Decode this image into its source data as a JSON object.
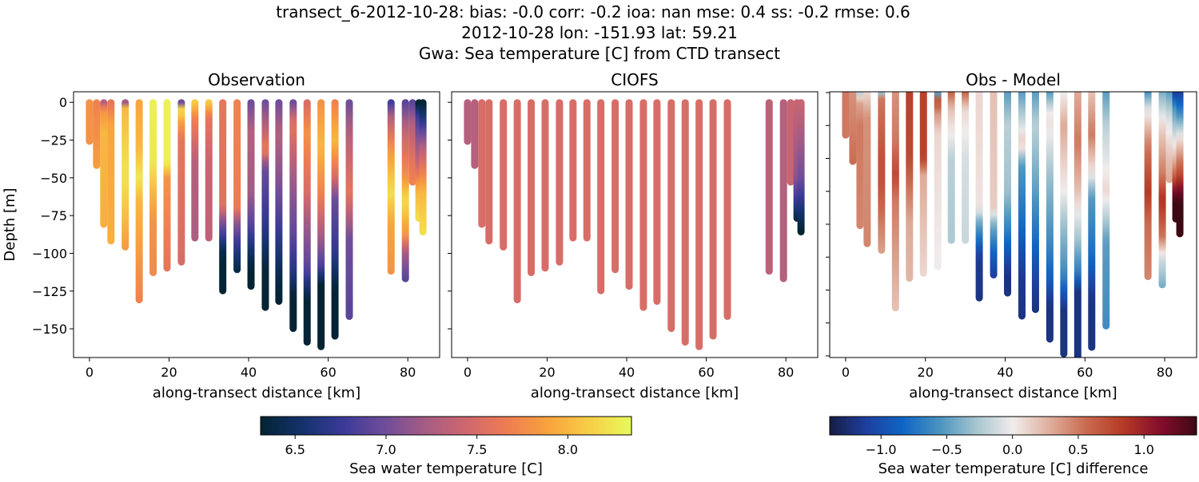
{
  "title_lines": [
    "transect_6-2012-10-28: bias: -0.0  corr: -0.2  ioa: nan  mse: 0.4  ss: -0.2  rmse: 0.6",
    "2012-10-28 lon: -151.93 lat: 59.21",
    "Gwa: Sea temperature [C] from CTD transect"
  ],
  "chart_data": [
    {
      "type": "scatter",
      "title": "Observation",
      "xlabel": "along-transect distance [km]",
      "ylabel": "Depth [m]",
      "xlim": [
        -4,
        88
      ],
      "ylim": [
        -169,
        7
      ],
      "xticks": [
        "0",
        "20",
        "40",
        "60",
        "80"
      ],
      "yticks": [
        "0",
        "−25",
        "−50",
        "−75",
        "−100",
        "−125",
        "−150"
      ],
      "variable": "obs",
      "colormap": "thermal",
      "clim": [
        6.31,
        8.35
      ]
    },
    {
      "type": "scatter",
      "title": "CIOFS",
      "xlabel": "along-transect distance [km]",
      "xlim": [
        -4,
        88
      ],
      "ylim": [
        -169,
        7
      ],
      "xticks": [
        "0",
        "20",
        "40",
        "60",
        "80"
      ],
      "variable": "model",
      "colormap": "thermal",
      "clim": [
        6.31,
        8.35
      ]
    },
    {
      "type": "scatter",
      "title": "Obs - Model",
      "xlabel": "along-transect distance [km]",
      "xlim": [
        -4,
        88
      ],
      "ylim": [
        -161,
        0.5
      ],
      "xticks": [
        "0",
        "20",
        "40",
        "60",
        "80"
      ],
      "variable": "difference",
      "colormap": "balance",
      "clim": [
        -1.39,
        1.4
      ]
    }
  ],
  "casts": [
    {
      "km": 0,
      "bottom": -26,
      "obs": [
        [
          0,
          7.8
        ],
        [
          -26,
          7.8
        ]
      ],
      "model": [
        [
          0,
          7.3
        ],
        [
          -26,
          7.3
        ]
      ]
    },
    {
      "km": 1.8,
      "bottom": -42,
      "obs": [
        [
          0,
          7.7
        ],
        [
          -42,
          7.85
        ]
      ],
      "model": [
        [
          0,
          7.3
        ],
        [
          -42,
          7.3
        ]
      ]
    },
    {
      "km": 3.6,
      "bottom": -81,
      "obs": [
        [
          0,
          7.3
        ],
        [
          -5,
          7.8
        ],
        [
          -20,
          8.0
        ],
        [
          -81,
          7.95
        ]
      ],
      "model": [
        [
          0,
          7.5
        ],
        [
          -81,
          7.5
        ]
      ]
    },
    {
      "km": 5.4,
      "bottom": -92,
      "obs": [
        [
          0,
          7.6
        ],
        [
          -15,
          7.9
        ],
        [
          -92,
          7.95
        ]
      ],
      "model": [
        [
          0,
          7.5
        ],
        [
          -92,
          7.5
        ]
      ]
    },
    {
      "km": 9,
      "bottom": -96,
      "obs": [
        [
          0,
          7.2
        ],
        [
          -3,
          8.0
        ],
        [
          -40,
          8.2
        ],
        [
          -55,
          8.2
        ],
        [
          -96,
          7.85
        ]
      ],
      "model": [
        [
          0,
          7.5
        ],
        [
          -96,
          7.5
        ]
      ]
    },
    {
      "km": 12.5,
      "bottom": -131,
      "obs": [
        [
          0,
          7.9
        ],
        [
          -30,
          8.0
        ],
        [
          -50,
          8.25
        ],
        [
          -65,
          8.0
        ],
        [
          -131,
          7.7
        ]
      ],
      "model": [
        [
          0,
          7.5
        ],
        [
          -131,
          7.5
        ]
      ]
    },
    {
      "km": 16,
      "bottom": -113,
      "obs": [
        [
          0,
          8.3
        ],
        [
          -40,
          8.25
        ],
        [
          -60,
          8.0
        ],
        [
          -80,
          7.8
        ],
        [
          -113,
          7.75
        ]
      ],
      "model": [
        [
          0,
          7.5
        ],
        [
          -113,
          7.5
        ]
      ]
    },
    {
      "km": 19.5,
      "bottom": -110,
      "obs": [
        [
          0,
          8.3
        ],
        [
          -40,
          8.3
        ],
        [
          -50,
          7.8
        ],
        [
          -110,
          7.6
        ]
      ],
      "model": [
        [
          0,
          7.5
        ],
        [
          -110,
          7.5
        ]
      ]
    },
    {
      "km": 23.1,
      "bottom": -106,
      "obs": [
        [
          0,
          7.0
        ],
        [
          -5,
          8.3
        ],
        [
          -12,
          7.9
        ],
        [
          -25,
          7.6
        ],
        [
          -106,
          7.5
        ]
      ],
      "model": [
        [
          0,
          7.5
        ],
        [
          -106,
          7.5
        ]
      ]
    },
    {
      "km": 26.5,
      "bottom": -90,
      "obs": [
        [
          0,
          8.1
        ],
        [
          -10,
          7.7
        ],
        [
          -40,
          7.3
        ],
        [
          -90,
          7.25
        ]
      ],
      "model": [
        [
          0,
          7.5
        ],
        [
          -90,
          7.5
        ]
      ]
    },
    {
      "km": 30,
      "bottom": -90,
      "obs": [
        [
          0,
          8.1
        ],
        [
          -10,
          7.6
        ],
        [
          -40,
          7.4
        ],
        [
          -90,
          7.35
        ]
      ],
      "model": [
        [
          0,
          7.5
        ],
        [
          -90,
          7.5
        ]
      ]
    },
    {
      "km": 33.5,
      "bottom": -125,
      "obs": [
        [
          0,
          7.6
        ],
        [
          -70,
          7.55
        ],
        [
          -78,
          7.1
        ],
        [
          -90,
          6.7
        ],
        [
          -100,
          6.35
        ],
        [
          -125,
          6.3
        ]
      ],
      "model": [
        [
          0,
          7.5
        ],
        [
          -125,
          7.5
        ]
      ]
    },
    {
      "km": 37.1,
      "bottom": -111,
      "obs": [
        [
          0,
          7.7
        ],
        [
          -70,
          7.65
        ],
        [
          -80,
          7.1
        ],
        [
          -95,
          6.7
        ],
        [
          -111,
          6.4
        ]
      ],
      "model": [
        [
          0,
          7.5
        ],
        [
          -111,
          7.5
        ]
      ]
    },
    {
      "km": 40.6,
      "bottom": -122,
      "obs": [
        [
          0,
          7.0
        ],
        [
          -20,
          7.3
        ],
        [
          -60,
          7.2
        ],
        [
          -80,
          6.9
        ],
        [
          -100,
          6.5
        ],
        [
          -110,
          6.3
        ],
        [
          -122,
          6.3
        ]
      ],
      "model": [
        [
          0,
          7.5
        ],
        [
          -122,
          7.5
        ]
      ]
    },
    {
      "km": 44.2,
      "bottom": -136,
      "obs": [
        [
          0,
          7.0
        ],
        [
          -20,
          7.4
        ],
        [
          -32,
          7.7
        ],
        [
          -42,
          7.0
        ],
        [
          -80,
          6.7
        ],
        [
          -110,
          6.35
        ],
        [
          -136,
          6.3
        ]
      ],
      "model": [
        [
          0,
          7.5
        ],
        [
          -136,
          7.5
        ]
      ]
    },
    {
      "km": 47.6,
      "bottom": -132,
      "obs": [
        [
          0,
          7.0
        ],
        [
          -20,
          7.3
        ],
        [
          -60,
          7.0
        ],
        [
          -90,
          6.7
        ],
        [
          -115,
          6.4
        ],
        [
          -132,
          6.3
        ]
      ],
      "model": [
        [
          0,
          7.5
        ],
        [
          -132,
          7.5
        ]
      ]
    },
    {
      "km": 51.2,
      "bottom": -150,
      "obs": [
        [
          0,
          7.0
        ],
        [
          -15,
          7.6
        ],
        [
          -50,
          7.2
        ],
        [
          -90,
          6.9
        ],
        [
          -115,
          6.6
        ],
        [
          -128,
          6.3
        ],
        [
          -150,
          6.3
        ]
      ],
      "model": [
        [
          0,
          7.5
        ],
        [
          -150,
          7.5
        ]
      ]
    },
    {
      "km": 54.7,
      "bottom": -159,
      "obs": [
        [
          0,
          7.5
        ],
        [
          -20,
          7.8
        ],
        [
          -60,
          7.5
        ],
        [
          -80,
          7.2
        ],
        [
          -110,
          6.9
        ],
        [
          -120,
          6.6
        ],
        [
          -132,
          6.3
        ],
        [
          -159,
          6.3
        ]
      ],
      "model": [
        [
          0,
          7.5
        ],
        [
          -159,
          7.5
        ]
      ]
    },
    {
      "km": 58.2,
      "bottom": -162,
      "obs": [
        [
          0,
          7.8
        ],
        [
          -30,
          8.0
        ],
        [
          -60,
          7.7
        ],
        [
          -90,
          7.2
        ],
        [
          -110,
          6.8
        ],
        [
          -120,
          6.3
        ],
        [
          -162,
          6.3
        ]
      ],
      "model": [
        [
          0,
          7.5
        ],
        [
          -162,
          7.5
        ]
      ]
    },
    {
      "km": 61.7,
      "bottom": -155,
      "obs": [
        [
          0,
          7.7
        ],
        [
          -25,
          8.0
        ],
        [
          -50,
          7.5
        ],
        [
          -62,
          7.0
        ],
        [
          -100,
          6.7
        ],
        [
          -125,
          6.3
        ],
        [
          -155,
          6.3
        ]
      ],
      "model": [
        [
          0,
          7.5
        ],
        [
          -155,
          7.5
        ]
      ]
    },
    {
      "km": 65.3,
      "bottom": -142,
      "obs": [
        [
          0,
          7.0
        ],
        [
          -20,
          7.3
        ],
        [
          -60,
          7.6
        ],
        [
          -90,
          7.0
        ],
        [
          -142,
          6.9
        ]
      ],
      "model": [
        [
          0,
          7.5
        ],
        [
          -142,
          7.5
        ]
      ]
    },
    {
      "km": 75.8,
      "bottom": -112,
      "obs": [
        [
          0,
          6.8
        ],
        [
          -10,
          7.3
        ],
        [
          -30,
          7.8
        ],
        [
          -60,
          8.2
        ],
        [
          -80,
          7.9
        ],
        [
          -112,
          7.8
        ]
      ],
      "model": [
        [
          0,
          7.35
        ],
        [
          -112,
          7.35
        ]
      ]
    },
    {
      "km": 79.4,
      "bottom": -117,
      "obs": [
        [
          0,
          6.9
        ],
        [
          -20,
          7.4
        ],
        [
          -50,
          7.8
        ],
        [
          -65,
          8.2
        ],
        [
          -88,
          7.8
        ],
        [
          -100,
          7.2
        ],
        [
          -117,
          6.9
        ]
      ],
      "model": [
        [
          0,
          7.3
        ],
        [
          -117,
          7.3
        ]
      ]
    },
    {
      "km": 81.2,
      "bottom": -53,
      "obs": [
        [
          0,
          6.9
        ],
        [
          -15,
          7.3
        ],
        [
          -40,
          7.6
        ],
        [
          -53,
          7.7
        ]
      ],
      "model": [
        [
          0,
          7.4
        ],
        [
          -53,
          7.4
        ]
      ]
    },
    {
      "km": 82.8,
      "bottom": -77,
      "obs": [
        [
          0,
          6.3
        ],
        [
          -10,
          6.8
        ],
        [
          -40,
          7.4
        ],
        [
          -60,
          8.0
        ],
        [
          -77,
          8.2
        ]
      ],
      "model": [
        [
          0,
          7.4
        ],
        [
          -50,
          7.1
        ],
        [
          -70,
          6.6
        ],
        [
          -77,
          6.4
        ]
      ]
    },
    {
      "km": 83.8,
      "bottom": -86,
      "obs": [
        [
          0,
          6.3
        ],
        [
          -10,
          6.6
        ],
        [
          -30,
          7.3
        ],
        [
          -60,
          8.0
        ],
        [
          -86,
          8.2
        ]
      ],
      "model": [
        [
          0,
          7.4
        ],
        [
          -50,
          7.0
        ],
        [
          -75,
          6.5
        ],
        [
          -86,
          6.3
        ]
      ]
    }
  ],
  "colorbars": [
    {
      "label": "Sea water temperature [C]",
      "colormap": "thermal",
      "range": [
        6.31,
        8.35
      ],
      "ticks": [
        6.5,
        7.0,
        7.5,
        8.0
      ],
      "tick_labels": [
        "6.5",
        "7.0",
        "7.5",
        "8.0"
      ]
    },
    {
      "label": "Sea water temperature [C] difference",
      "colormap": "balance",
      "range": [
        -1.39,
        1.4
      ],
      "ticks": [
        -1.0,
        -0.5,
        0.0,
        0.5,
        1.0
      ],
      "tick_labels": [
        "−1.0",
        "−0.5",
        "0.0",
        "0.5",
        "1.0"
      ]
    }
  ],
  "colormaps": {
    "thermal": [
      "#042333",
      "#13326b",
      "#3b3a98",
      "#6e4c9a",
      "#a55c84",
      "#d0676e",
      "#ee7d52",
      "#f9a43d",
      "#f7cf47",
      "#e8fa5b"
    ],
    "balance": [
      "#181c43",
      "#1d3f9e",
      "#0f65c5",
      "#4b93c0",
      "#a7c6d0",
      "#f1ecec",
      "#dfae9c",
      "#c96a4e",
      "#b53a25",
      "#850d2c",
      "#3c0912"
    ]
  }
}
